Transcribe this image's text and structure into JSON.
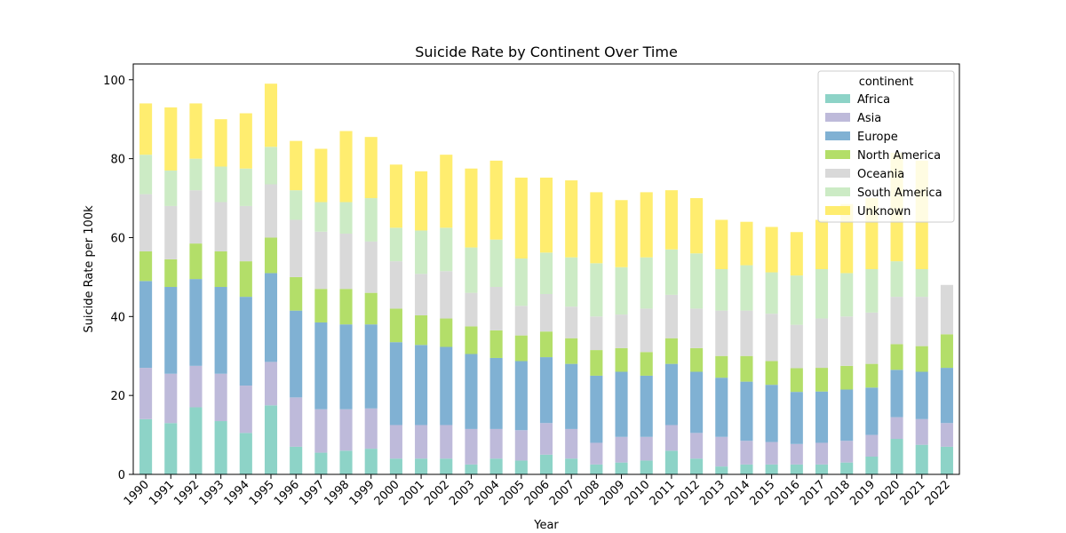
{
  "chart_data": {
    "type": "bar",
    "stacked": true,
    "title": "Suicide Rate by Continent Over Time",
    "xlabel": "Year",
    "ylabel": "Suicide Rate per 100k",
    "ylim": [
      0,
      104
    ],
    "yticks": [
      0,
      20,
      40,
      60,
      80,
      100
    ],
    "legend": {
      "title": "continent",
      "placement": "top-right"
    },
    "categories": [
      "1990",
      "1991",
      "1992",
      "1993",
      "1994",
      "1995",
      "1996",
      "1997",
      "1998",
      "1999",
      "2000",
      "2001",
      "2002",
      "2003",
      "2004",
      "2005",
      "2006",
      "2007",
      "2008",
      "2009",
      "2010",
      "2011",
      "2012",
      "2013",
      "2014",
      "2015",
      "2016",
      "2017",
      "2018",
      "2019",
      "2020",
      "2021",
      "2022"
    ],
    "series": [
      {
        "name": "Africa",
        "color": "#8dd3c7",
        "values": [
          14.0,
          13.0,
          17.0,
          13.5,
          10.5,
          17.5,
          7.0,
          5.5,
          6.0,
          6.5,
          4.0,
          4.0,
          4.0,
          2.5,
          4.0,
          3.5,
          5.0,
          4.0,
          2.5,
          3.0,
          3.5,
          6.0,
          4.0,
          2.0,
          2.5,
          2.5,
          2.5,
          2.5,
          3.0,
          4.5,
          9.0,
          7.5,
          7.0
        ]
      },
      {
        "name": "Asia",
        "color": "#bebada",
        "values": [
          13.0,
          12.5,
          10.5,
          12.0,
          12.0,
          11.0,
          12.5,
          11.0,
          10.5,
          10.2,
          8.5,
          8.5,
          8.5,
          9.0,
          7.5,
          7.7,
          8.0,
          7.5,
          5.5,
          6.5,
          6.0,
          6.5,
          6.5,
          7.5,
          6.0,
          5.7,
          5.2,
          5.5,
          5.5,
          5.5,
          5.5,
          6.5,
          6.0
        ]
      },
      {
        "name": "Europe",
        "color": "#80b1d3",
        "values": [
          22.0,
          22.0,
          22.0,
          22.0,
          22.5,
          22.5,
          22.0,
          22.0,
          21.5,
          21.3,
          21.0,
          20.3,
          19.8,
          19.0,
          18.0,
          17.5,
          16.7,
          16.5,
          17.0,
          16.5,
          15.5,
          15.5,
          15.5,
          15.0,
          15.0,
          14.5,
          13.2,
          13.0,
          13.0,
          12.0,
          12.0,
          12.0,
          14.0
        ]
      },
      {
        "name": "North America",
        "color": "#b3de69",
        "values": [
          7.5,
          7.0,
          9.0,
          9.0,
          9.0,
          9.0,
          8.5,
          8.5,
          9.0,
          8.0,
          8.5,
          7.5,
          7.2,
          7.0,
          7.0,
          6.5,
          6.5,
          6.5,
          6.5,
          6.0,
          6.0,
          6.5,
          6.0,
          5.5,
          6.5,
          6.0,
          6.0,
          6.0,
          6.0,
          6.0,
          6.5,
          6.5,
          8.5
        ]
      },
      {
        "name": "Oceania",
        "color": "#d9d9d9",
        "values": [
          14.5,
          13.5,
          13.5,
          12.5,
          14.0,
          13.5,
          14.5,
          14.5,
          14.0,
          13.0,
          12.0,
          10.5,
          12.0,
          8.5,
          11.0,
          7.5,
          9.5,
          8.0,
          8.5,
          8.5,
          11.0,
          11.0,
          10.0,
          11.5,
          11.5,
          12.0,
          11.0,
          12.5,
          12.5,
          13.0,
          12.0,
          12.5,
          12.5
        ]
      },
      {
        "name": "South America",
        "color": "#ccebc5",
        "values": [
          10.0,
          9.0,
          8.0,
          9.0,
          9.5,
          9.5,
          7.5,
          7.5,
          8.0,
          11.0,
          8.5,
          11.0,
          11.0,
          11.5,
          12.0,
          12.0,
          10.5,
          12.5,
          13.5,
          12.0,
          13.0,
          11.5,
          14.0,
          10.5,
          11.5,
          10.5,
          12.5,
          12.5,
          11.0,
          11.0,
          9.0,
          7.0,
          0.0
        ]
      },
      {
        "name": "Unknown",
        "color": "#ffed6f",
        "values": [
          13.0,
          16.0,
          14.0,
          12.0,
          14.0,
          16.0,
          12.5,
          13.5,
          18.0,
          15.5,
          16.0,
          15.0,
          18.5,
          20.0,
          20.0,
          20.5,
          19.0,
          19.5,
          18.0,
          17.0,
          16.5,
          15.0,
          14.0,
          12.5,
          11.0,
          11.5,
          11.0,
          12.5,
          17.5,
          18.0,
          27.5,
          27.5,
          0.0
        ]
      }
    ]
  }
}
